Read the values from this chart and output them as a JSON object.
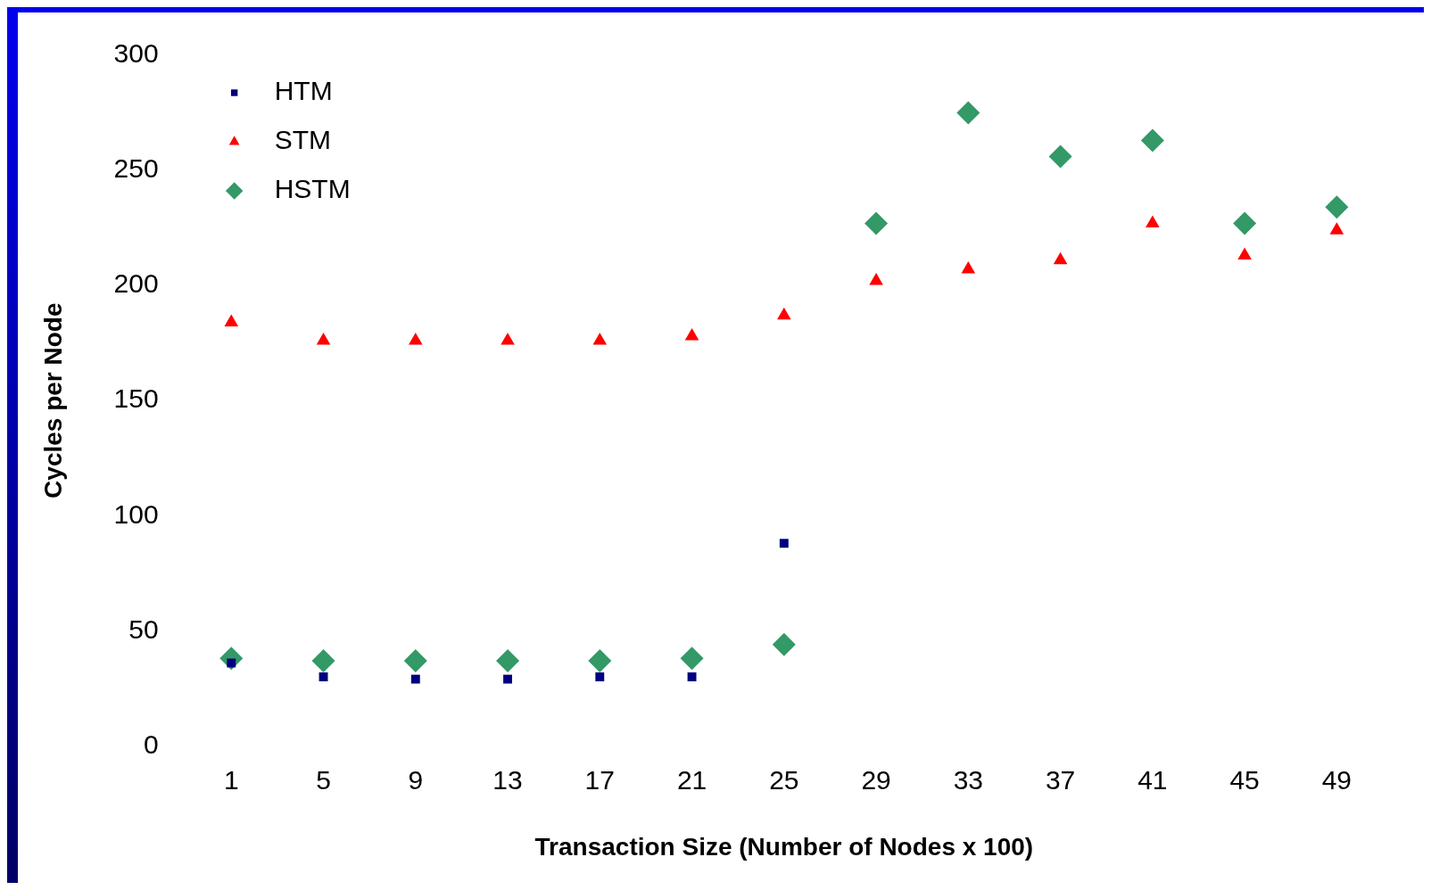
{
  "chart_data": {
    "type": "scatter",
    "xlabel": "Transaction Size (Number of Nodes x 100)",
    "ylabel": "Cycles per Node",
    "categories": [
      "1",
      "5",
      "9",
      "13",
      "17",
      "21",
      "25",
      "29",
      "33",
      "37",
      "41",
      "45",
      "49"
    ],
    "series": [
      {
        "name": "HTM",
        "color": "#000080",
        "marker": "square",
        "values": [
          36,
          30,
          29,
          29,
          30,
          30,
          88,
          null,
          null,
          null,
          null,
          null,
          null
        ]
      },
      {
        "name": "STM",
        "color": "#ff0000",
        "marker": "triangle",
        "values": [
          184,
          176,
          176,
          176,
          176,
          178,
          187,
          202,
          207,
          211,
          227,
          213,
          224
        ]
      },
      {
        "name": "HSTM",
        "color": "#339966",
        "marker": "diamond",
        "values": [
          38,
          37,
          37,
          37,
          37,
          38,
          44,
          227,
          275,
          256,
          263,
          227,
          234
        ]
      }
    ],
    "ylim": [
      0,
      300
    ],
    "yticks": [
      0,
      50,
      100,
      150,
      200,
      250,
      300
    ],
    "grid": false,
    "legend": "top left"
  }
}
